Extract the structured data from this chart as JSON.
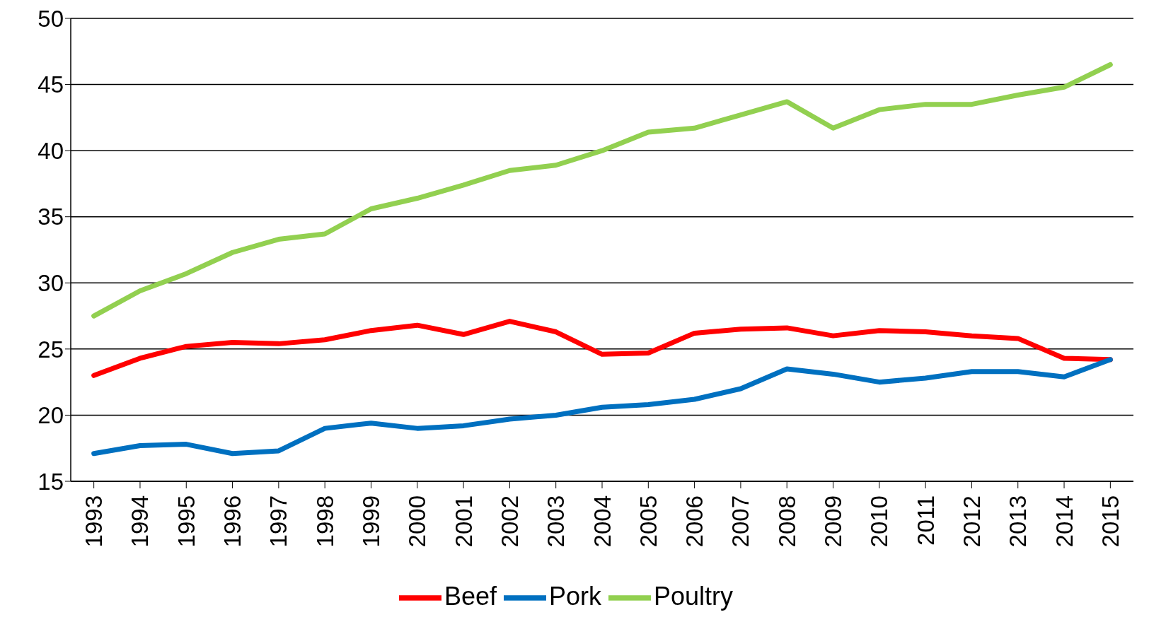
{
  "chart_data": {
    "type": "line",
    "categories": [
      "1993",
      "1994",
      "1995",
      "1996",
      "1997",
      "1998",
      "1999",
      "2000",
      "2001",
      "2002",
      "2003",
      "2004",
      "2005",
      "2006",
      "2007",
      "2008",
      "2009",
      "2010",
      "2011",
      "2012",
      "2013",
      "2014",
      "2015"
    ],
    "series": [
      {
        "name": "Beef",
        "color": "#ff0000",
        "values": [
          23.0,
          24.3,
          25.2,
          25.5,
          25.4,
          25.7,
          26.4,
          26.8,
          26.1,
          27.1,
          26.3,
          24.6,
          24.7,
          26.2,
          26.5,
          26.6,
          26.0,
          26.4,
          26.3,
          26.0,
          25.8,
          24.3,
          24.2
        ]
      },
      {
        "name": "Pork",
        "color": "#0070c0",
        "values": [
          17.1,
          17.7,
          17.8,
          17.1,
          17.3,
          19.0,
          19.4,
          19.0,
          19.2,
          19.7,
          20.0,
          20.6,
          20.8,
          21.2,
          22.0,
          23.5,
          23.1,
          22.5,
          22.8,
          23.3,
          23.3,
          22.9,
          24.2
        ]
      },
      {
        "name": "Poultry",
        "color": "#92d050",
        "values": [
          27.5,
          29.4,
          30.7,
          32.3,
          33.3,
          33.7,
          35.6,
          36.4,
          37.4,
          38.5,
          38.9,
          40.0,
          41.4,
          41.7,
          42.7,
          43.7,
          41.7,
          43.1,
          43.5,
          43.5,
          44.2,
          44.8,
          46.5
        ]
      }
    ],
    "ylim": [
      15,
      50
    ],
    "yticks": [
      15,
      20,
      25,
      30,
      35,
      40,
      45,
      50
    ],
    "grid": "y",
    "legend": "bottom",
    "marker": "none",
    "line_style": "solid"
  }
}
